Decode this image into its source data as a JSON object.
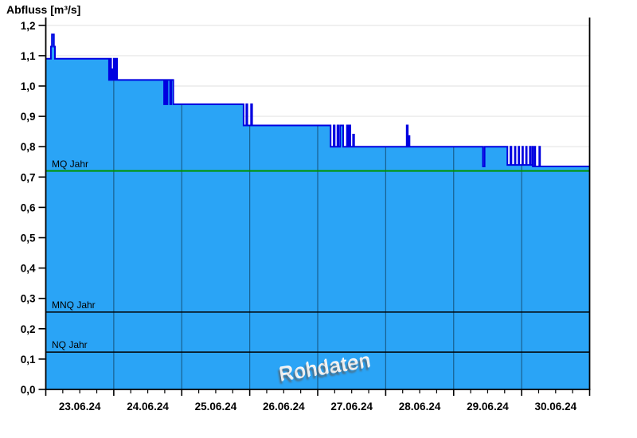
{
  "title": "Abfluss [m³/s]",
  "watermark": "Rohdaten",
  "colors": {
    "fill": "#2aa4f6",
    "line": "#0000e0",
    "grid_horizontal": "#eaeaea",
    "grid_vertical": "rgba(0,0,0,0.42)",
    "axis": "#000000",
    "mq_line": "#009300",
    "ref_line": "#000000",
    "text": "#000000"
  },
  "ref_lines": [
    {
      "label": "MQ Jahr",
      "value": 0.72,
      "color_key": "mq_line"
    },
    {
      "label": "MNQ Jahr",
      "value": 0.255,
      "color_key": "ref_line"
    },
    {
      "label": "NQ Jahr",
      "value": 0.123,
      "color_key": "ref_line"
    }
  ],
  "chart_data": {
    "type": "area",
    "title": "Abfluss [m³/s]",
    "xlabel": "",
    "ylabel": "Abfluss [m³/s]",
    "x_unit": "days since 23.06.24 00:00",
    "xlim": [
      0,
      8
    ],
    "ylim": [
      0,
      1.2
    ],
    "y_tick_step": 0.1,
    "grid": true,
    "legend": "none",
    "y_tick_labels": [
      "0,0",
      "0,1",
      "0,2",
      "0,3",
      "0,4",
      "0,5",
      "0,6",
      "0,7",
      "0,8",
      "0,9",
      "1,0",
      "1,1",
      "1,2"
    ],
    "x_tick_labels": [
      "23.06.24",
      "24.06.24",
      "25.06.24",
      "26.06.24",
      "27.06.24",
      "28.06.24",
      "29.06.24",
      "30.06.24"
    ],
    "minor_divisions_per_day": 4,
    "step_points": [
      [
        0,
        1.09
      ],
      [
        0.075,
        1.13
      ],
      [
        0.09,
        1.17
      ],
      [
        0.115,
        1.17
      ],
      [
        0.12,
        1.13
      ],
      [
        0.135,
        1.09
      ],
      [
        0.93,
        1.02
      ],
      [
        0.945,
        1.09
      ],
      [
        0.96,
        1.02
      ],
      [
        0.975,
        1.055
      ],
      [
        0.985,
        1.02
      ],
      [
        1.0,
        1.09
      ],
      [
        1.015,
        1.02
      ],
      [
        1.03,
        1.09
      ],
      [
        1.05,
        1.02
      ],
      [
        1.74,
        0.94
      ],
      [
        1.755,
        1.02
      ],
      [
        1.775,
        0.94
      ],
      [
        1.79,
        1.02
      ],
      [
        1.83,
        0.94
      ],
      [
        1.845,
        1.02
      ],
      [
        1.875,
        0.94
      ],
      [
        2.91,
        0.87
      ],
      [
        2.95,
        0.94
      ],
      [
        2.965,
        0.87
      ],
      [
        3.02,
        0.94
      ],
      [
        3.035,
        0.87
      ],
      [
        4.19,
        0.8
      ],
      [
        4.235,
        0.87
      ],
      [
        4.25,
        0.8
      ],
      [
        4.29,
        0.87
      ],
      [
        4.305,
        0.8
      ],
      [
        4.33,
        0.87
      ],
      [
        4.375,
        0.8
      ],
      [
        4.43,
        0.87
      ],
      [
        4.445,
        0.8
      ],
      [
        4.465,
        0.87
      ],
      [
        4.48,
        0.8
      ],
      [
        4.52,
        0.84
      ],
      [
        4.535,
        0.8
      ],
      [
        5.31,
        0.87
      ],
      [
        5.325,
        0.8
      ],
      [
        5.335,
        0.835
      ],
      [
        5.35,
        0.8
      ],
      [
        6.43,
        0.735
      ],
      [
        6.455,
        0.8
      ],
      [
        6.79,
        0.74
      ],
      [
        6.835,
        0.8
      ],
      [
        6.85,
        0.74
      ],
      [
        6.9,
        0.8
      ],
      [
        6.91,
        0.74
      ],
      [
        6.955,
        0.8
      ],
      [
        6.965,
        0.74
      ],
      [
        7.01,
        0.8
      ],
      [
        7.02,
        0.74
      ],
      [
        7.065,
        0.8
      ],
      [
        7.075,
        0.74
      ],
      [
        7.12,
        0.8
      ],
      [
        7.13,
        0.74
      ],
      [
        7.155,
        0.8
      ],
      [
        7.165,
        0.735
      ],
      [
        7.19,
        0.8
      ],
      [
        7.2,
        0.735
      ],
      [
        7.26,
        0.8
      ],
      [
        7.27,
        0.735
      ],
      [
        8,
        0.735
      ]
    ]
  }
}
